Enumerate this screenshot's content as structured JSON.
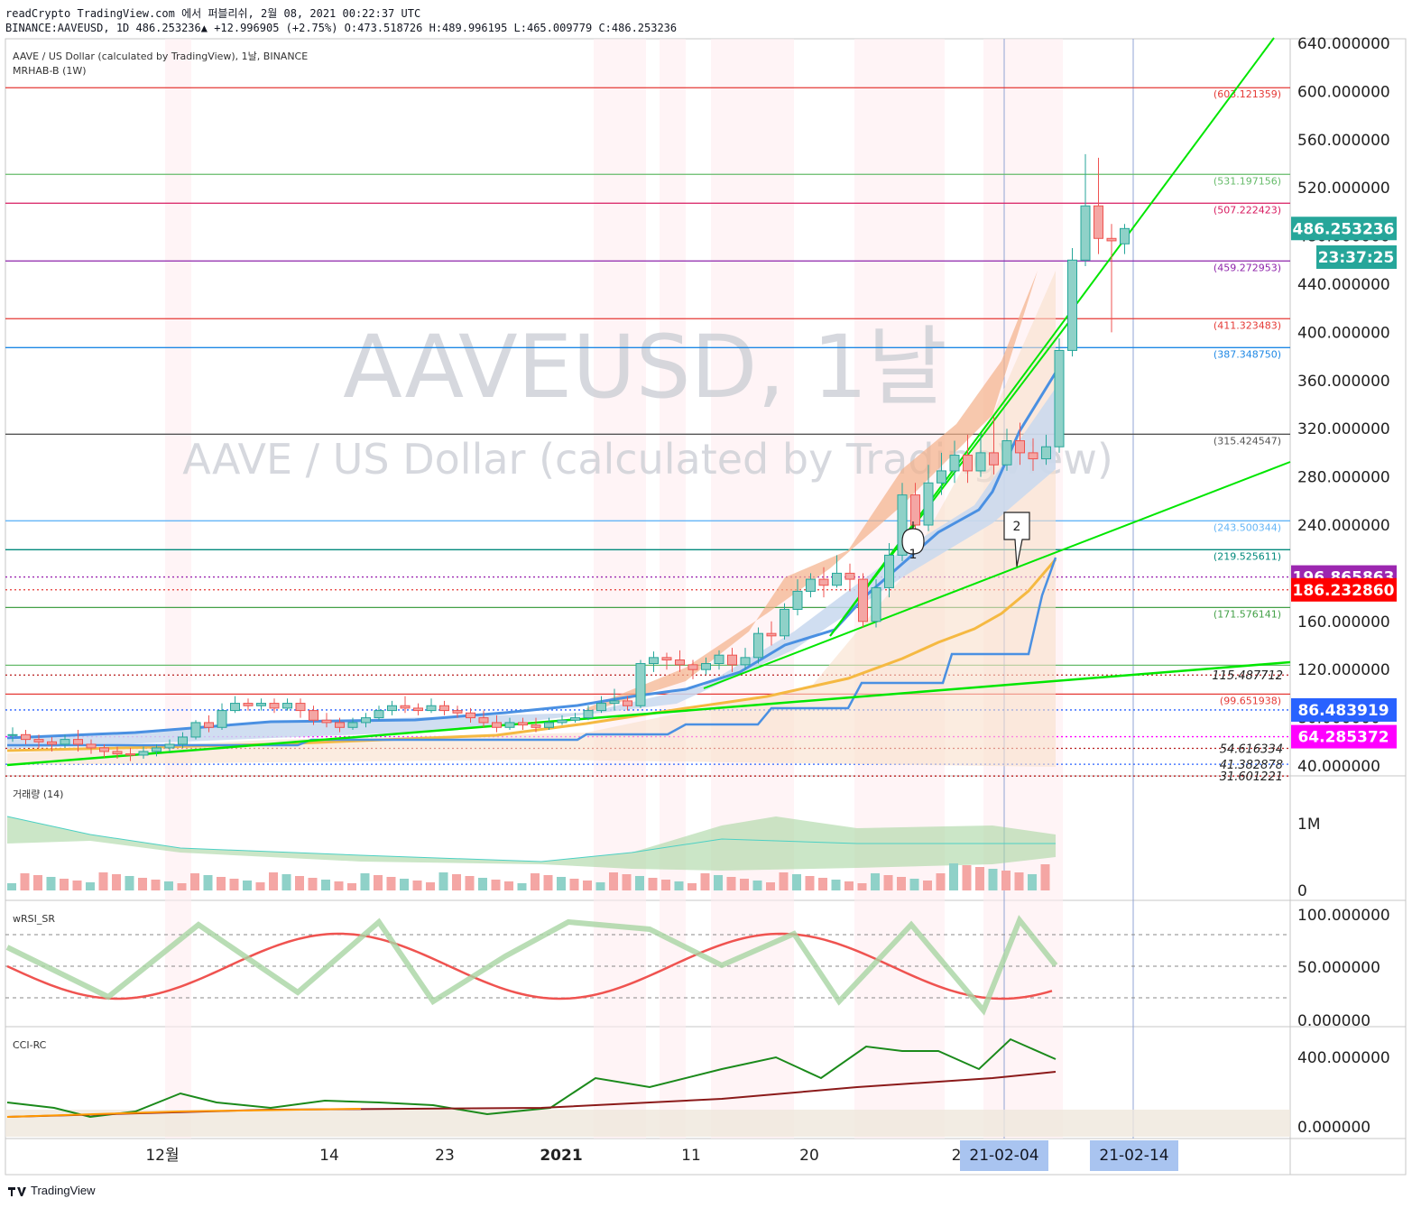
{
  "header": {
    "line1": "readCrypto TradingView.com 에서 퍼블리쉬, 2월 08, 2021 00:22:37 UTC",
    "line2": "BINANCE:AAVEUSD, 1D 486.253236▲ +12.996905 (+2.75%) O:473.518726 H:489.996195 L:465.009779 C:486.253236"
  },
  "legend": {
    "line1": "AAVE / US Dollar (calculated by TradingView), 1날, BINANCE",
    "line2": "MRHAB-B (1W)"
  },
  "watermark": {
    "symbol": "AAVEUSD, 1날",
    "name": "AAVE / US Dollar (calculated by TradingView)"
  },
  "colors": {
    "up": "#26a69a",
    "down": "#ef5350",
    "green_line": "#00e600",
    "blue_line": "#4a90e2",
    "orange_line": "#f5b942",
    "price_tag": "#26a69a"
  },
  "chart_data": [
    {
      "type": "candlestick",
      "title": "AAVEUSD, 1D",
      "ylim": [
        30,
        650
      ],
      "yticks": [
        "640.000000",
        "600.000000",
        "560.000000",
        "520.000000",
        "480.000000",
        "440.000000",
        "400.000000",
        "360.000000",
        "320.000000",
        "280.000000",
        "240.000000",
        "200.000000",
        "160.000000",
        "120.000000",
        "80.000000",
        "40.000000"
      ],
      "xticks": [
        "12월",
        "14",
        "23",
        "2021",
        "11",
        "20",
        "2"
      ],
      "last_price": "486.253236",
      "countdown": "23:37:25",
      "price_tags": [
        {
          "value": 486.253236,
          "label": "486.253236",
          "color": "#26a69a"
        },
        {
          "value": 196.865863,
          "label": "196.865863",
          "color": "#9c27b0"
        },
        {
          "value": 186.23286,
          "label": "186.232860",
          "color": "#ff0000"
        },
        {
          "value": 86.483919,
          "label": "86.483919",
          "color": "#2962ff"
        },
        {
          "value": 64.285372,
          "label": "64.285372",
          "color": "#ff00ff"
        }
      ],
      "levels": [
        {
          "value": 603.121359,
          "label": "(603.121359)",
          "color": "#e53935"
        },
        {
          "value": 531.197156,
          "label": "(531.197156)",
          "color": "#66bb6a"
        },
        {
          "value": 507.222423,
          "label": "(507.222423)",
          "color": "#d81b60"
        },
        {
          "value": 459.272953,
          "label": "(459.272953)",
          "color": "#8e24aa"
        },
        {
          "value": 411.323483,
          "label": "(411.323483)",
          "color": "#e53935"
        },
        {
          "value": 387.34875,
          "label": "(387.348750)",
          "color": "#1e88e5"
        },
        {
          "value": 315.424547,
          "label": "(315.424547)",
          "color": "#555555"
        },
        {
          "value": 243.500344,
          "label": "(243.500344)",
          "color": "#64b5f6"
        },
        {
          "value": 219.525611,
          "label": "(219.525611)",
          "color": "#00897b"
        },
        {
          "value": 171.576141,
          "label": "(171.576141)",
          "color": "#43a047"
        },
        {
          "value": 123.6,
          "label": "",
          "color": "#66bb6a"
        },
        {
          "value": 99.651938,
          "label": "(99.651938)",
          "color": "#e53935"
        }
      ],
      "dotted_levels": [
        {
          "value": 196.865863,
          "color": "#9c27b0"
        },
        {
          "value": 186.23286,
          "color": "#e53935"
        },
        {
          "value": 115.487712,
          "label": "115.487712",
          "color": "#b71c1c"
        },
        {
          "value": 86.483919,
          "color": "#2962ff"
        },
        {
          "value": 64.285372,
          "color": "#ff00ff"
        },
        {
          "value": 54.616334,
          "label": "54.616334",
          "color": "#b71c1c"
        },
        {
          "value": 41.382878,
          "label": "41.382878",
          "color": "#2962ff"
        },
        {
          "value": 31.601221,
          "label": "31.601221",
          "color": "#b71c1c"
        }
      ],
      "annotations": [
        "1",
        "2"
      ],
      "candles": [
        [
          66,
          66,
          60,
          72
        ],
        [
          66,
          62,
          58,
          70
        ],
        [
          62,
          60,
          55,
          66
        ],
        [
          60,
          58,
          52,
          64
        ],
        [
          58,
          62,
          55,
          66
        ],
        [
          62,
          58,
          52,
          70
        ],
        [
          58,
          55,
          50,
          62
        ],
        [
          55,
          52,
          47,
          58
        ],
        [
          52,
          50,
          46,
          56
        ],
        [
          50,
          49,
          44,
          55
        ],
        [
          49,
          52,
          46,
          56
        ],
        [
          52,
          55,
          48,
          58
        ],
        [
          55,
          58,
          52,
          62
        ],
        [
          58,
          64,
          55,
          68
        ],
        [
          64,
          76,
          62,
          78
        ],
        [
          76,
          72,
          68,
          82
        ],
        [
          72,
          86,
          70,
          92
        ],
        [
          86,
          92,
          84,
          98
        ],
        [
          92,
          90,
          86,
          96
        ],
        [
          90,
          92,
          86,
          96
        ],
        [
          92,
          88,
          84,
          96
        ],
        [
          88,
          92,
          86,
          96
        ],
        [
          92,
          86,
          80,
          96
        ],
        [
          86,
          78,
          74,
          90
        ],
        [
          78,
          76,
          72,
          84
        ],
        [
          76,
          72,
          68,
          80
        ],
        [
          72,
          76,
          70,
          80
        ],
        [
          76,
          80,
          72,
          84
        ],
        [
          80,
          86,
          78,
          90
        ],
        [
          86,
          90,
          82,
          94
        ],
        [
          90,
          88,
          84,
          98
        ],
        [
          88,
          86,
          82,
          92
        ],
        [
          86,
          90,
          84,
          96
        ],
        [
          90,
          86,
          82,
          94
        ],
        [
          86,
          84,
          80,
          90
        ],
        [
          84,
          80,
          76,
          88
        ],
        [
          80,
          76,
          72,
          86
        ],
        [
          76,
          72,
          68,
          82
        ],
        [
          72,
          76,
          70,
          80
        ],
        [
          76,
          74,
          70,
          80
        ],
        [
          74,
          72,
          68,
          80
        ],
        [
          72,
          76,
          70,
          80
        ],
        [
          76,
          78,
          74,
          82
        ],
        [
          78,
          80,
          76,
          84
        ],
        [
          80,
          86,
          78,
          90
        ],
        [
          86,
          92,
          84,
          98
        ],
        [
          92,
          94,
          86,
          104
        ],
        [
          94,
          90,
          86,
          98
        ],
        [
          90,
          125,
          88,
          128
        ],
        [
          125,
          130,
          118,
          135
        ],
        [
          130,
          128,
          120,
          134
        ],
        [
          128,
          124,
          118,
          136
        ],
        [
          124,
          120,
          112,
          128
        ],
        [
          120,
          125,
          116,
          130
        ],
        [
          125,
          132,
          120,
          136
        ],
        [
          132,
          124,
          118,
          138
        ],
        [
          124,
          130,
          120,
          138
        ],
        [
          130,
          150,
          125,
          155
        ],
        [
          150,
          148,
          140,
          160
        ],
        [
          148,
          170,
          145,
          175
        ],
        [
          170,
          185,
          165,
          195
        ],
        [
          185,
          195,
          180,
          200
        ],
        [
          195,
          190,
          180,
          205
        ],
        [
          190,
          200,
          188,
          215
        ],
        [
          200,
          195,
          185,
          208
        ],
        [
          195,
          160,
          155,
          200
        ],
        [
          160,
          188,
          155,
          195
        ],
        [
          188,
          215,
          180,
          225
        ],
        [
          215,
          265,
          210,
          275
        ],
        [
          265,
          240,
          230,
          275
        ],
        [
          240,
          275,
          235,
          290
        ],
        [
          275,
          285,
          265,
          300
        ],
        [
          285,
          298,
          275,
          310
        ],
        [
          298,
          285,
          275,
          315
        ],
        [
          285,
          300,
          280,
          315
        ],
        [
          300,
          290,
          282,
          330
        ],
        [
          290,
          310,
          285,
          320
        ],
        [
          310,
          300,
          290,
          325
        ],
        [
          300,
          295,
          285,
          312
        ],
        [
          295,
          305,
          290,
          315
        ],
        [
          305,
          385,
          300,
          395
        ],
        [
          385,
          460,
          380,
          470
        ],
        [
          460,
          505,
          455,
          548
        ],
        [
          505,
          478,
          465,
          545
        ],
        [
          478,
          476,
          400,
          490
        ],
        [
          473.5,
          486.2,
          465,
          490
        ]
      ]
    },
    {
      "type": "area",
      "title": "거래량 (14)",
      "yticks": [
        "1M",
        "0"
      ]
    },
    {
      "type": "line",
      "title": "wRSI_SR",
      "yticks": [
        "100.000000",
        "50.000000",
        "0.000000"
      ]
    },
    {
      "type": "line",
      "title": "CCI-RC",
      "yticks": [
        "400.000000",
        "0.000000"
      ]
    }
  ],
  "date_labels": [
    "21-02-04",
    "21-02-14"
  ],
  "footer": {
    "brand": "TradingView"
  }
}
